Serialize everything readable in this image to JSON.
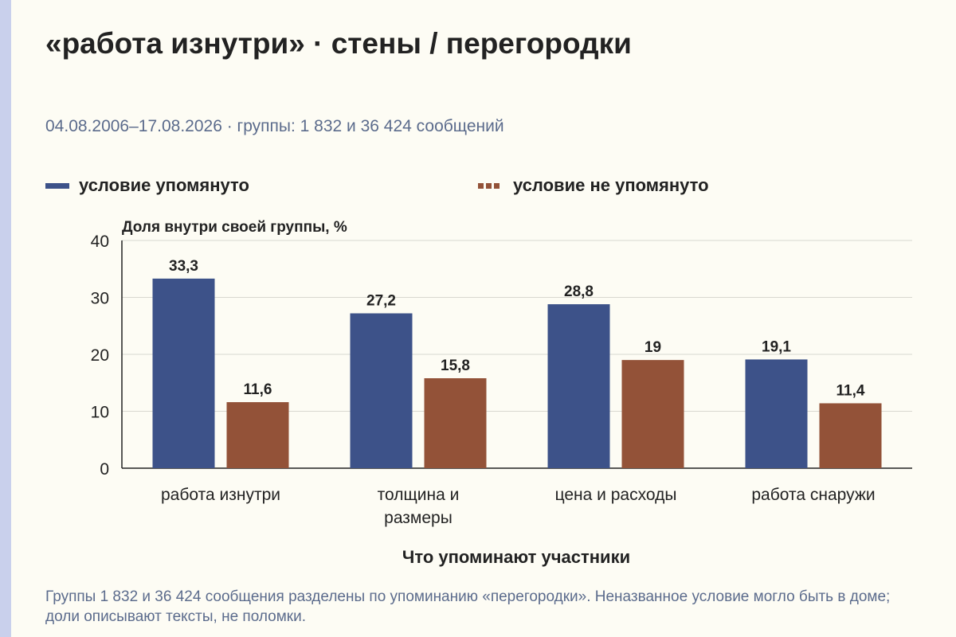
{
  "title": "«работа изнутри» · стены / перегородки",
  "subtitle": "04.08.2006–17.08.2026 · группы: 1 832 и 36 424 сообщений",
  "colors": {
    "mentioned": "#3d5289",
    "not_mentioned": "#935238",
    "grid": "#d8d8d0",
    "axis": "#222222",
    "muted_text": "#5b6b8c"
  },
  "legend": {
    "mentioned": "условие упомянуто",
    "not_mentioned": "условие не упомянуто"
  },
  "chart_data": {
    "type": "bar",
    "ylabel": "Доля внутри своей группы, %",
    "xlabel": "Что упоминают участники",
    "ylim": [
      0,
      40
    ],
    "yticks": [
      0,
      10,
      20,
      30,
      40
    ],
    "grid": true,
    "legend_position": "top",
    "categories": [
      [
        "работа изнутри"
      ],
      [
        "толщина и",
        "размеры"
      ],
      [
        "цена и расходы"
      ],
      [
        "работа снаружи"
      ]
    ],
    "series": [
      {
        "name": "условие упомянуто",
        "values": [
          33.3,
          27.2,
          28.8,
          19.1
        ],
        "labels": [
          "33,3",
          "27,2",
          "28,8",
          "19,1"
        ]
      },
      {
        "name": "условие не упомянуто",
        "values": [
          11.6,
          15.8,
          19,
          11.4
        ],
        "labels": [
          "11,6",
          "15,8",
          "19",
          "11,4"
        ]
      }
    ]
  },
  "footnote": "Группы 1 832 и 36 424 сообщения разделены по упоминанию «перегородки». Неназванное условие могло быть в доме; доли описывают тексты, не поломки."
}
